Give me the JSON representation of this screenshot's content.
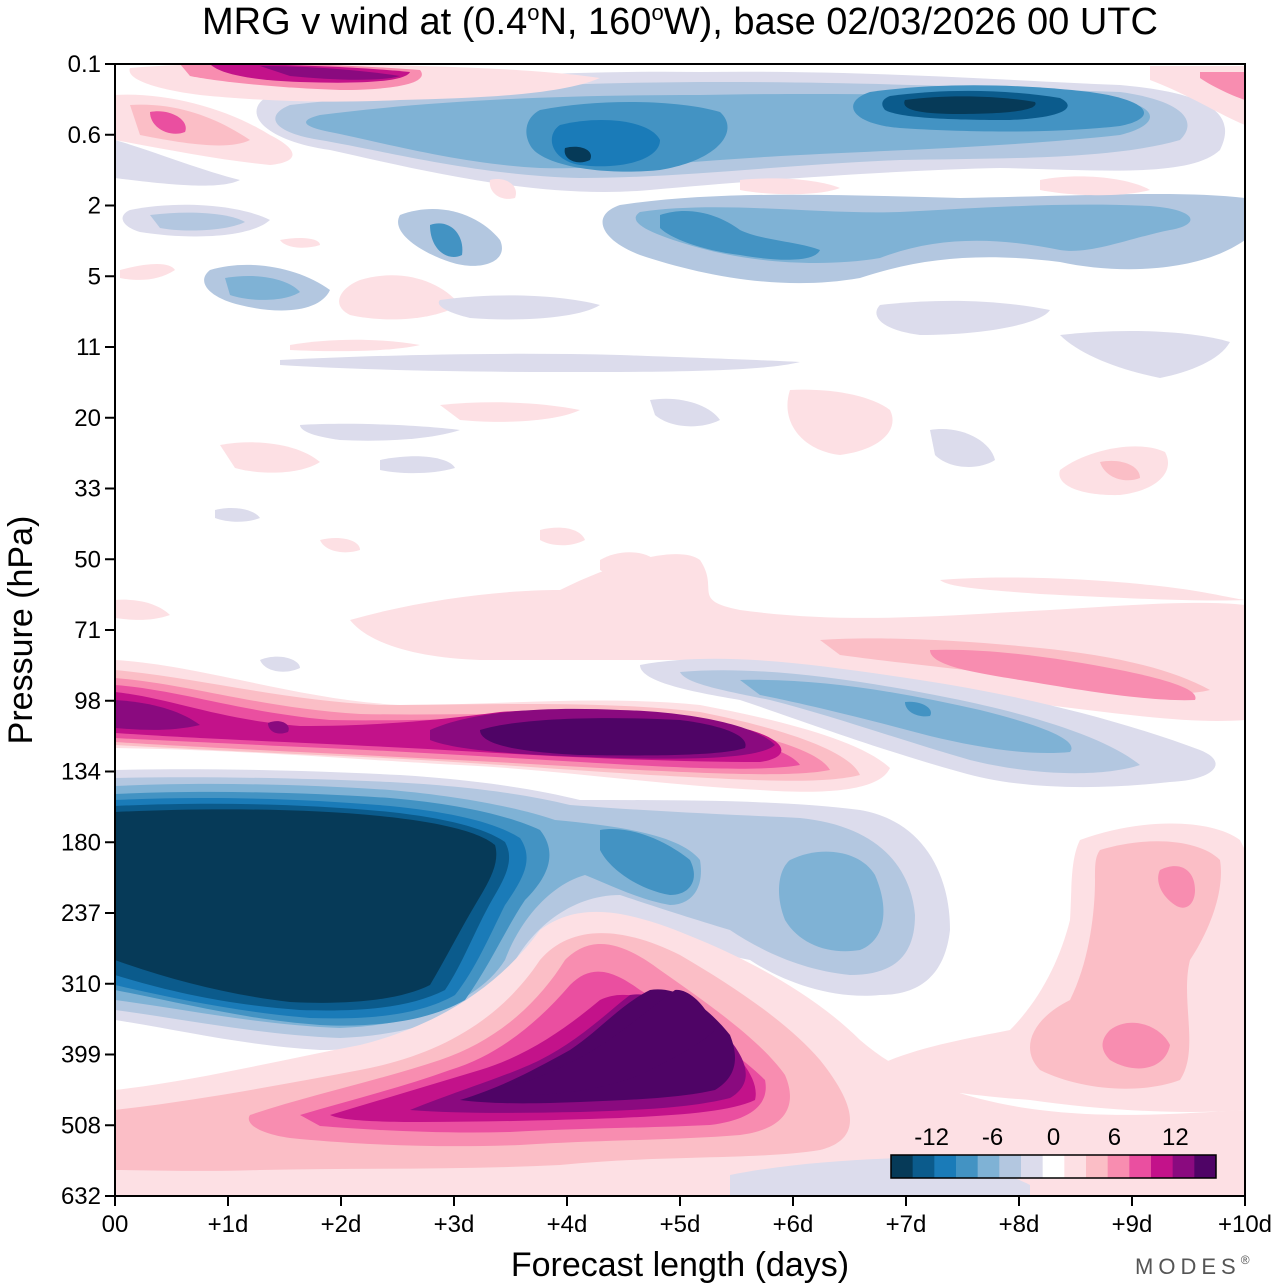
{
  "chart_data": {
    "type": "heatmap",
    "title": "MRG v wind at (0.4°N, 160°W),  base 02/03/2026  00 UTC",
    "title_parts": {
      "prefix": "MRG v wind at (0.4",
      "deg1": "o",
      "mid": "N, 160",
      "deg2": "o",
      "suffix": "W),  base 02/03/2026  00 UTC"
    },
    "xlabel": "Forecast length (days)",
    "ylabel": "Pressure (hPa)",
    "x_ticks": [
      "00",
      "+1d",
      "+2d",
      "+3d",
      "+4d",
      "+5d",
      "+6d",
      "+7d",
      "+8d",
      "+9d",
      "+10d"
    ],
    "xlim": [
      0,
      10
    ],
    "y_ticks": [
      "0.1",
      "0.6",
      "2",
      "5",
      "11",
      "20",
      "33",
      "50",
      "71",
      "98",
      "134",
      "180",
      "237",
      "310",
      "399",
      "508",
      "632"
    ],
    "colorbar": {
      "labels": [
        "-12",
        "-6",
        "0",
        "6",
        "12"
      ],
      "label_values": [
        -12,
        -6,
        0,
        6,
        12
      ],
      "levels": [
        -16,
        -14,
        -12,
        -10,
        -8,
        -6,
        -4,
        -2,
        2,
        4,
        6,
        8,
        10,
        12,
        14,
        16
      ],
      "colors": [
        "#063a58",
        "#0b5b8c",
        "#1a7bb8",
        "#4393c3",
        "#7fb2d5",
        "#b3c7e0",
        "#dcdcec",
        "#ffffff",
        "#fde0e4",
        "#fbbec6",
        "#f88db0",
        "#ea4fa0",
        "#c3128a",
        "#8a0a7f",
        "#4f0466"
      ]
    },
    "features": [
      {
        "name": "negative core",
        "x": 1.8,
        "level": 180,
        "value": -16
      },
      {
        "name": "positive band",
        "x": 4.6,
        "level": 110,
        "value": 15
      },
      {
        "name": "positive core",
        "x": 4.9,
        "level": 399,
        "value": 15
      },
      {
        "name": "negative upper band",
        "x": 8.0,
        "level": 0.5,
        "value": -15
      },
      {
        "name": "positive band",
        "x": 8.7,
        "level": 85,
        "value": 8
      },
      {
        "name": "positive patch",
        "x": 9.2,
        "level": 230,
        "value": 8
      }
    ]
  },
  "branding": "MODES",
  "branding_mark": "®"
}
